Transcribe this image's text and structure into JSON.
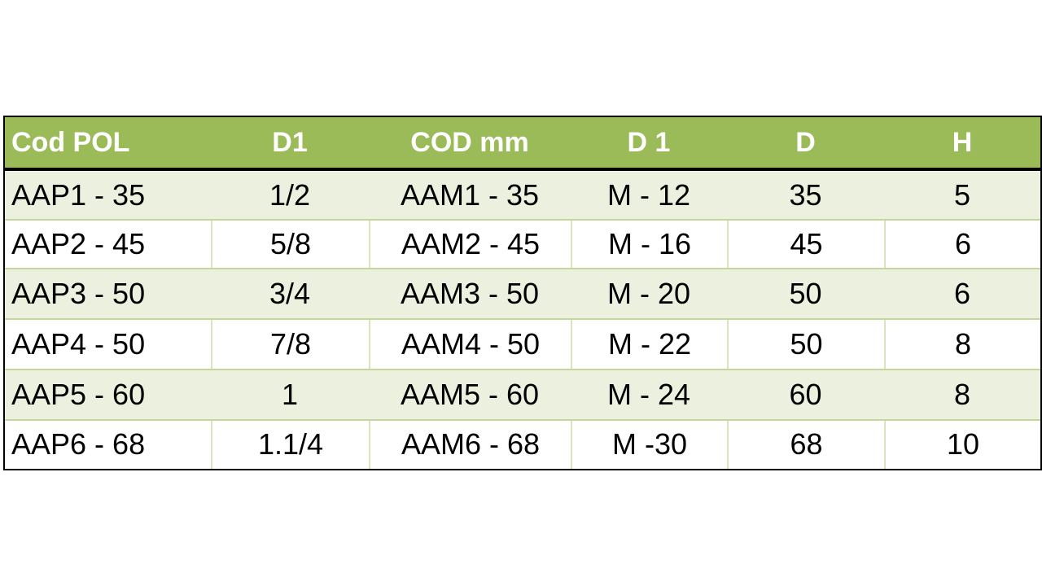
{
  "table": {
    "header": [
      "Cod POL",
      "D1",
      "COD mm",
      "D 1",
      "D",
      "H"
    ],
    "rows": [
      [
        "AAP1 - 35",
        "1/2",
        "AAM1 - 35",
        "M - 12",
        "35",
        "5"
      ],
      [
        "AAP2 - 45",
        "5/8",
        "AAM2 - 45",
        "M - 16",
        "45",
        "6"
      ],
      [
        "AAP3 - 50",
        "3/4",
        "AAM3 - 50",
        "M - 20",
        "50",
        "6"
      ],
      [
        "AAP4 - 50",
        "7/8",
        "AAM4 - 50",
        "M - 22",
        "50",
        "8"
      ],
      [
        "AAP5 - 60",
        "1",
        "AAM5 - 60",
        "M - 24",
        "60",
        "8"
      ],
      [
        "AAP6 - 68",
        "1.1/4",
        "AAM6 - 68",
        "M -30",
        "68",
        "10"
      ]
    ]
  }
}
